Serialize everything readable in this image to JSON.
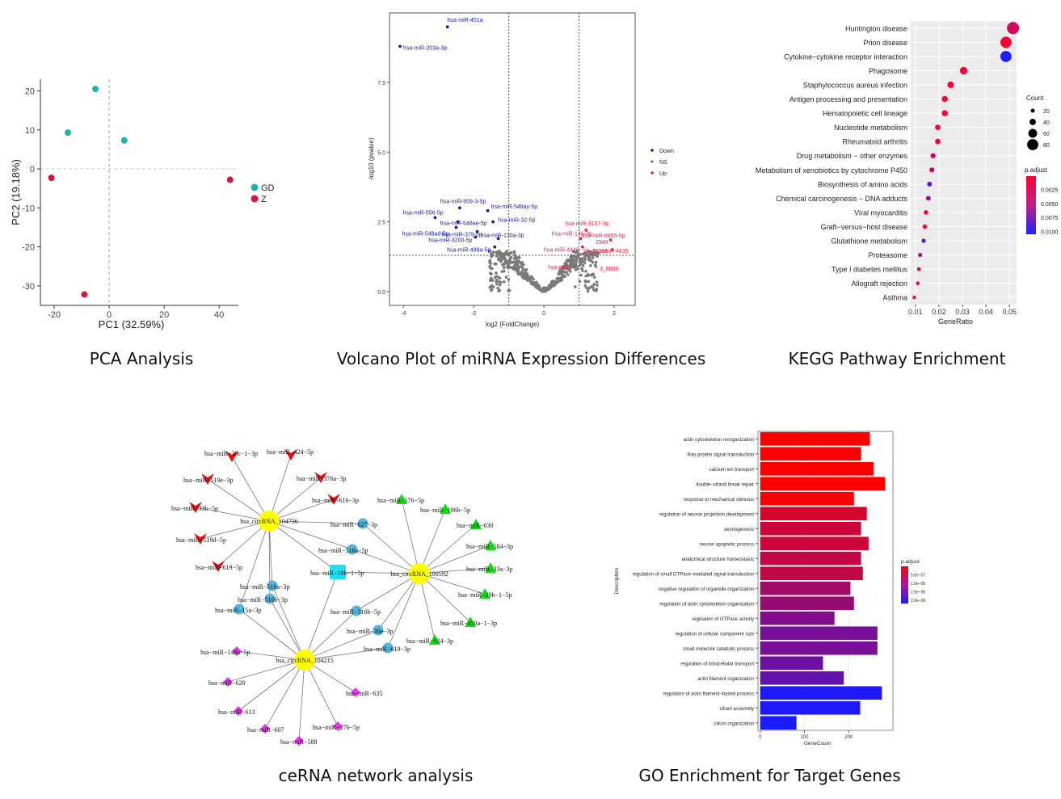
{
  "captions": {
    "pca": "PCA Analysis",
    "volcano": "Volcano Plot of miRNA Expression Differences",
    "kegg": "KEGG Pathway Enrichment",
    "network": "ceRNA network analysis",
    "go": "GO Enrichment for Target Genes"
  },
  "chart_data": [
    {
      "id": "pca",
      "type": "scatter",
      "title": "PCA Analysis",
      "xlabel": "PC1 (32.59%)",
      "ylabel": "PC2 (19.18%)",
      "xlim": [
        -25,
        47
      ],
      "ylim": [
        -35,
        23
      ],
      "xticks": [
        "-20",
        "0",
        "20",
        "40"
      ],
      "xtick_values": [
        -20,
        0,
        20,
        40
      ],
      "yticks": [
        "20",
        "10",
        "0",
        "-10",
        "-20",
        "-30"
      ],
      "ytick_values": [
        20,
        10,
        0,
        -10,
        -20,
        -30
      ],
      "legend": [
        {
          "label": "GDM",
          "color": "#20b2aa"
        },
        {
          "label": "Z",
          "color": "#dc143c"
        }
      ],
      "series": [
        {
          "name": "GDM",
          "color": "#20b2aa",
          "points": [
            [
              -5,
              20.5
            ],
            [
              -15,
              9.3
            ],
            [
              5.5,
              7.3
            ]
          ]
        },
        {
          "name": "Z",
          "color": "#dc143c",
          "points": [
            [
              -21,
              -2.3
            ],
            [
              44,
              -2.8
            ],
            [
              -9,
              -32.2
            ]
          ]
        }
      ]
    },
    {
      "id": "volcano",
      "type": "scatter",
      "title": "Volcano Plot of miRNA Expression Differences",
      "xlabel": "log2 (FoldChange)",
      "ylabel": "-log10 (pvalue)",
      "xlim": [
        -4.4,
        2.6
      ],
      "ylim": [
        -0.5,
        10
      ],
      "xticks": [
        "-4",
        "-2",
        "0",
        "2"
      ],
      "xtick_values": [
        -4,
        -2,
        0,
        2
      ],
      "yticks": [
        "0.0",
        "2.5",
        "5.0",
        "7.5"
      ],
      "ytick_values": [
        0,
        2.5,
        5,
        7.5
      ],
      "thresholds": {
        "x": [
          -1,
          1
        ],
        "y": 1.3
      },
      "legend": [
        {
          "label": "Down",
          "color": "#1a1a9c"
        },
        {
          "label": "NS",
          "color": "#808080"
        },
        {
          "label": "Up",
          "color": "#e0264a"
        }
      ],
      "labeled_points": [
        {
          "label": "hsa-miR-451a",
          "x": -2.75,
          "y": 9.5,
          "group": "Down"
        },
        {
          "label": "hsa-miR-203a-3p",
          "x": -4.1,
          "y": 8.8,
          "group": "Down"
        },
        {
          "label": "hsa-miR-509-3-5p",
          "x": -2.4,
          "y": 3.0,
          "group": "Down"
        },
        {
          "label": "hsa-miR-548ay-5p",
          "x": -1.6,
          "y": 2.9,
          "group": "Down"
        },
        {
          "label": "hsa-miR-556-5p",
          "x": -3.1,
          "y": 2.65,
          "group": "Down"
        },
        {
          "label": "hsa-miR-548ae-5p",
          "x": -2.45,
          "y": 2.5,
          "group": "Down"
        },
        {
          "label": "hsa-miR-32-5p",
          "x": -1.45,
          "y": 2.5,
          "group": "Down"
        },
        {
          "label": "hsa-miR-548ad-5p",
          "x": -2.5,
          "y": 2.3,
          "group": "Down"
        },
        {
          "label": "hsa-miR-379-5p",
          "x": -1.9,
          "y": 2.15,
          "group": "Down"
        },
        {
          "label": "hsa-miR-3200-5p",
          "x": -1.95,
          "y": 1.95,
          "group": "Down"
        },
        {
          "label": "hsa-miR-130a-3p",
          "x": -1.3,
          "y": 1.9,
          "group": "Down"
        },
        {
          "label": "hsa-miR-499a-5p",
          "x": -1.4,
          "y": 1.6,
          "group": "Down"
        },
        {
          "label": "hsa-miR-3157-3p",
          "x": 1.2,
          "y": 2.2,
          "group": "Up"
        },
        {
          "label": "hsa-miR-140-3p",
          "x": 1.05,
          "y": 1.9,
          "group": "Up"
        },
        {
          "label": "hsa-miR-6855-5p",
          "x": 1.9,
          "y": 1.85,
          "group": "Up"
        },
        {
          "label": "hsa-miR-4449",
          "x": 1.1,
          "y": 1.6,
          "group": "Up"
        },
        {
          "label": "hsa-miR-4635",
          "x": 1.95,
          "y": 1.5,
          "group": "Up"
        }
      ],
      "annotations": [
        "2949",
        "19_40256",
        "3_8699",
        "hsa-miR-"
      ]
    },
    {
      "id": "kegg",
      "type": "scatter",
      "title": "KEGG Pathway Enrichment",
      "xlabel": "GeneRatio",
      "xlim": [
        0.008,
        0.053
      ],
      "xticks": [
        "0.01",
        "0.02",
        "0.03",
        "0.04",
        "0.05"
      ],
      "xtick_values": [
        0.01,
        0.02,
        0.03,
        0.04,
        0.05
      ],
      "categories": [
        "Huntington disease",
        "Prion disease",
        "Cytokine−cytokine receptor interaction",
        "Phagosome",
        "Staphylococcus aureus infection",
        "Antigen processing and presentation",
        "Hematopoietic cell lineage",
        "Nucleotide metabolism",
        "Rheumatoid arthritis",
        "Drug metabolism − other enzymes",
        "Metabolism of xenobiotics by cytochrome P450",
        "Biosynthesis of amino acids",
        "Chemical carcinogenesis − DNA adducts",
        "Viral myocarditis",
        "Graft−versus−host disease",
        "Glutathione metabolism",
        "Proteasome",
        "Type I diabetes mellitus",
        "Allograft rejection",
        "Asthma"
      ],
      "gene_ratio": [
        0.0515,
        0.0485,
        0.0485,
        0.0305,
        0.025,
        0.0225,
        0.0225,
        0.0195,
        0.0195,
        0.0175,
        0.017,
        0.016,
        0.0155,
        0.0145,
        0.014,
        0.0135,
        0.012,
        0.0115,
        0.011,
        0.0095
      ],
      "count": [
        88,
        80,
        80,
        50,
        41,
        37,
        37,
        32,
        32,
        29,
        28,
        27,
        26,
        24,
        23,
        22,
        20,
        19,
        18,
        16
      ],
      "p_adjust": [
        0.002,
        0.0003,
        0.0105,
        0.0002,
        0.0003,
        0.0002,
        0.0003,
        0.0003,
        0.0006,
        0.0025,
        0.0025,
        0.0075,
        0.005,
        0.001,
        0.0002,
        0.008,
        0.0045,
        0.0025,
        0.0015,
        0.0001
      ],
      "size_legend": {
        "title": "Count",
        "labels": [
          "20",
          "40",
          "60",
          "80"
        ],
        "values": [
          20,
          40,
          60,
          80
        ]
      },
      "color_legend": {
        "title": "p.adjust",
        "labels": [
          "0.0025",
          "0.0050",
          "0.0075",
          "0.0100"
        ],
        "values": [
          0.0025,
          0.005,
          0.0075,
          0.01
        ],
        "low_color": "#ff0033",
        "high_color": "#2020ff"
      }
    },
    {
      "id": "network",
      "type": "network",
      "title": "ceRNA network analysis",
      "hubs": [
        {
          "id": "c104736",
          "label": "hsa_circRNA_104736"
        },
        {
          "id": "c100592",
          "label": "hsa_circRNA_100592"
        },
        {
          "id": "c104215",
          "label": "hsa_circRNA_104215"
        }
      ],
      "nodes": [
        {
          "id": "n1",
          "label": "hsa−miR−30c−1−3p",
          "shape": "v",
          "hubs": [
            "c104736"
          ]
        },
        {
          "id": "n2",
          "label": "hsa−miR−424−5p",
          "shape": "v",
          "hubs": [
            "c104736"
          ]
        },
        {
          "id": "n3",
          "label": "hsa−miR−519e−3p",
          "shape": "v",
          "hubs": [
            "c104736"
          ]
        },
        {
          "id": "n4",
          "label": "hsa−miR−376a−3p",
          "shape": "v",
          "hubs": [
            "c104736"
          ]
        },
        {
          "id": "n5",
          "label": "hsa−miR−616−3p",
          "shape": "v",
          "hubs": [
            "c104736"
          ]
        },
        {
          "id": "n6",
          "label": "hsa−miR−33b−5p",
          "shape": "v",
          "hubs": [
            "c104736"
          ]
        },
        {
          "id": "n7",
          "label": "hsa−miR−519d−5p",
          "shape": "v",
          "hubs": [
            "c104736"
          ]
        },
        {
          "id": "n8",
          "label": "hsa−miR−619−5p",
          "shape": "v",
          "hubs": [
            "c104736"
          ]
        },
        {
          "id": "n9",
          "label": "hsa−miR−627−3p",
          "shape": "circle",
          "hubs": [
            "c104736",
            "c100592"
          ]
        },
        {
          "id": "n10",
          "label": "hsa−miR−516a−5p",
          "shape": "circle",
          "hubs": [
            "c104736",
            "c100592"
          ]
        },
        {
          "id": "n11",
          "label": "hsa−miR−19b−1−5p",
          "shape": "square",
          "hubs": [
            "c104736",
            "c100592",
            "c104215"
          ]
        },
        {
          "id": "n12",
          "label": "hsa−miR−516a−3p",
          "shape": "circle",
          "hubs": [
            "c104736",
            "c104215"
          ]
        },
        {
          "id": "n13",
          "label": "hsa−miR−516b−3p",
          "shape": "circle",
          "hubs": [
            "c104736",
            "c104215"
          ]
        },
        {
          "id": "n14",
          "label": "hsa−miR−15a−3p",
          "shape": "circle",
          "hubs": [
            "c104736",
            "c104215"
          ]
        },
        {
          "id": "n15",
          "label": "hsa−miR−516b−5p",
          "shape": "circle",
          "hubs": [
            "c100592",
            "c104215"
          ]
        },
        {
          "id": "n16",
          "label": "hsa−miR−30e−3p",
          "shape": "circle",
          "hubs": [
            "c100592",
            "c104215"
          ]
        },
        {
          "id": "n17",
          "label": "hsa−miR−619−3p",
          "shape": "circle",
          "hubs": [
            "c100592",
            "c104215"
          ]
        },
        {
          "id": "n18",
          "label": "hsa−miR−576−5p",
          "shape": "triangle",
          "hubs": [
            "c100592"
          ]
        },
        {
          "id": "n19",
          "label": "hsa−miR−196b−5p",
          "shape": "triangle",
          "hubs": [
            "c100592"
          ]
        },
        {
          "id": "n20",
          "label": "hsa−miR−630",
          "shape": "triangle",
          "hubs": [
            "c100592"
          ]
        },
        {
          "id": "n21",
          "label": "hsa−miR−584−3p",
          "shape": "triangle",
          "hubs": [
            "c100592"
          ]
        },
        {
          "id": "n22",
          "label": "hsa−miR−33a−3p",
          "shape": "triangle",
          "hubs": [
            "c100592"
          ]
        },
        {
          "id": "n23",
          "label": "hsa−miR−29b−1−5p",
          "shape": "triangle",
          "hubs": [
            "c100592"
          ]
        },
        {
          "id": "n24",
          "label": "hsa−miR−450a−1−3p",
          "shape": "triangle",
          "hubs": [
            "c100592"
          ]
        },
        {
          "id": "n25",
          "label": "hsa−miR−624−3p",
          "shape": "triangle",
          "hubs": [
            "c100592"
          ]
        },
        {
          "id": "n26",
          "label": "hsa−miR−148a−5p",
          "shape": "diamond",
          "hubs": [
            "c104215"
          ]
        },
        {
          "id": "n27",
          "label": "hsa−miR−620",
          "shape": "diamond",
          "hubs": [
            "c104215"
          ]
        },
        {
          "id": "n28",
          "label": "hsa−miR−635",
          "shape": "diamond",
          "hubs": [
            "c104215"
          ]
        },
        {
          "id": "n29",
          "label": "hsa−miR−613",
          "shape": "diamond",
          "hubs": [
            "c104215"
          ]
        },
        {
          "id": "n30",
          "label": "hsa−miR−607",
          "shape": "diamond",
          "hubs": [
            "c104215"
          ]
        },
        {
          "id": "n31",
          "label": "hsa−miR−27b−5p",
          "shape": "diamond",
          "hubs": [
            "c104215"
          ]
        },
        {
          "id": "n32",
          "label": "hsa−miR−588",
          "shape": "diamond",
          "hubs": [
            "c104215"
          ]
        }
      ],
      "colors": {
        "hub": "#ffff00",
        "v": "#dd1111",
        "circle": "#55b4dc",
        "square": "#22ddee",
        "triangle": "#11dd11",
        "diamond": "#ee33ee"
      }
    },
    {
      "id": "go",
      "type": "bar",
      "orientation": "horizontal",
      "title": "GO Enrichment for Target Genes",
      "xlabel": "GeneCount",
      "ylabel": "Description",
      "xlim": [
        -5,
        300
      ],
      "xticks": [
        "0",
        "100",
        "200"
      ],
      "xtick_values": [
        0,
        100,
        200
      ],
      "categories": [
        "actin cytoskeleton reorganization",
        "Ras protein signal transduction",
        "calcium ion transport",
        "double−strand break repair",
        "response to mechanical stimulus",
        "regulation of neuron projection development",
        "axonogenesis",
        "neuron apoptotic process",
        "anatomical structure homeostasis",
        "regulation of small GTPase mediated signal transduction",
        "negative regulation of organelle organization",
        "regulation of actin cytoskeleton organization",
        "regulation of GTPase activity",
        "regulation of cellular component size",
        "small molecule catabolic process",
        "regulation of intracellular transport",
        "actin filament organization",
        "regulation of actin filament−based process",
        "cilium assembly",
        "cilium organization"
      ],
      "values": [
        248,
        228,
        256,
        282,
        212,
        241,
        228,
        245,
        228,
        232,
        204,
        212,
        168,
        265,
        265,
        142,
        189,
        275,
        226,
        82
      ],
      "p_adjust": [
        1e-08,
        2e-08,
        1e-08,
        1e-08,
        6e-08,
        4e-07,
        5e-07,
        5e-07,
        6e-07,
        6e-07,
        9e-07,
        1e-06,
        1.2e-06,
        1.3e-06,
        1.3e-06,
        1.4e-06,
        1.5e-06,
        2.15e-06,
        2.15e-06,
        2.2e-06
      ],
      "color_legend": {
        "title": "p.adjust",
        "labels": [
          "5.0e−07",
          "1.0e−06",
          "1.5e−06",
          "2.0e−06"
        ],
        "values": [
          5e-07,
          1e-06,
          1.5e-06,
          2e-06
        ],
        "low_color": "#ff0000",
        "high_color": "#1a1aff"
      }
    }
  ]
}
